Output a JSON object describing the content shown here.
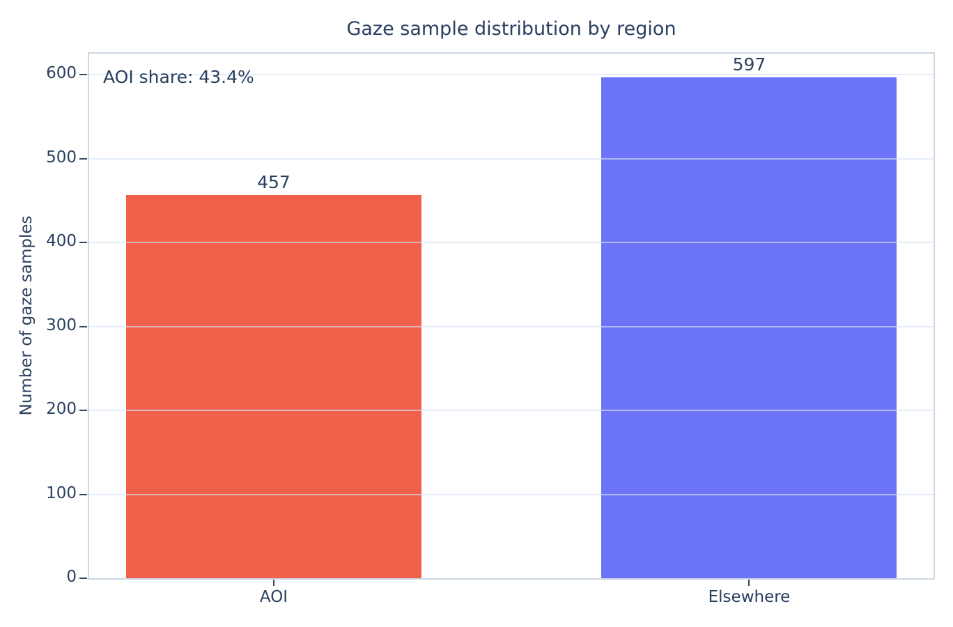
{
  "chart_data": {
    "type": "bar",
    "title": "Gaze sample distribution by region",
    "categories": [
      "AOI",
      "Elsewhere"
    ],
    "values": [
      457,
      597
    ],
    "value_labels": [
      "457",
      "597"
    ],
    "bar_colors": [
      "#F0604A",
      "#6B74F6"
    ],
    "xlabel": "",
    "ylabel": "Number of gaze samples",
    "ylim": [
      0,
      626
    ],
    "yticks": [
      0,
      100,
      200,
      300,
      400,
      500,
      600
    ],
    "grid": true,
    "legend": false,
    "annotation": "AOI share: 43.4%"
  },
  "colors": {
    "text": "#2A3F5F",
    "frame_border": "#CBD9E6",
    "gridline": "rgba(213,228,244,0.65)",
    "tick_mark": "#33485F",
    "aoi_bar": "#F0604A",
    "elsewhere_bar": "#6B74F6",
    "background": "#ffffff"
  }
}
